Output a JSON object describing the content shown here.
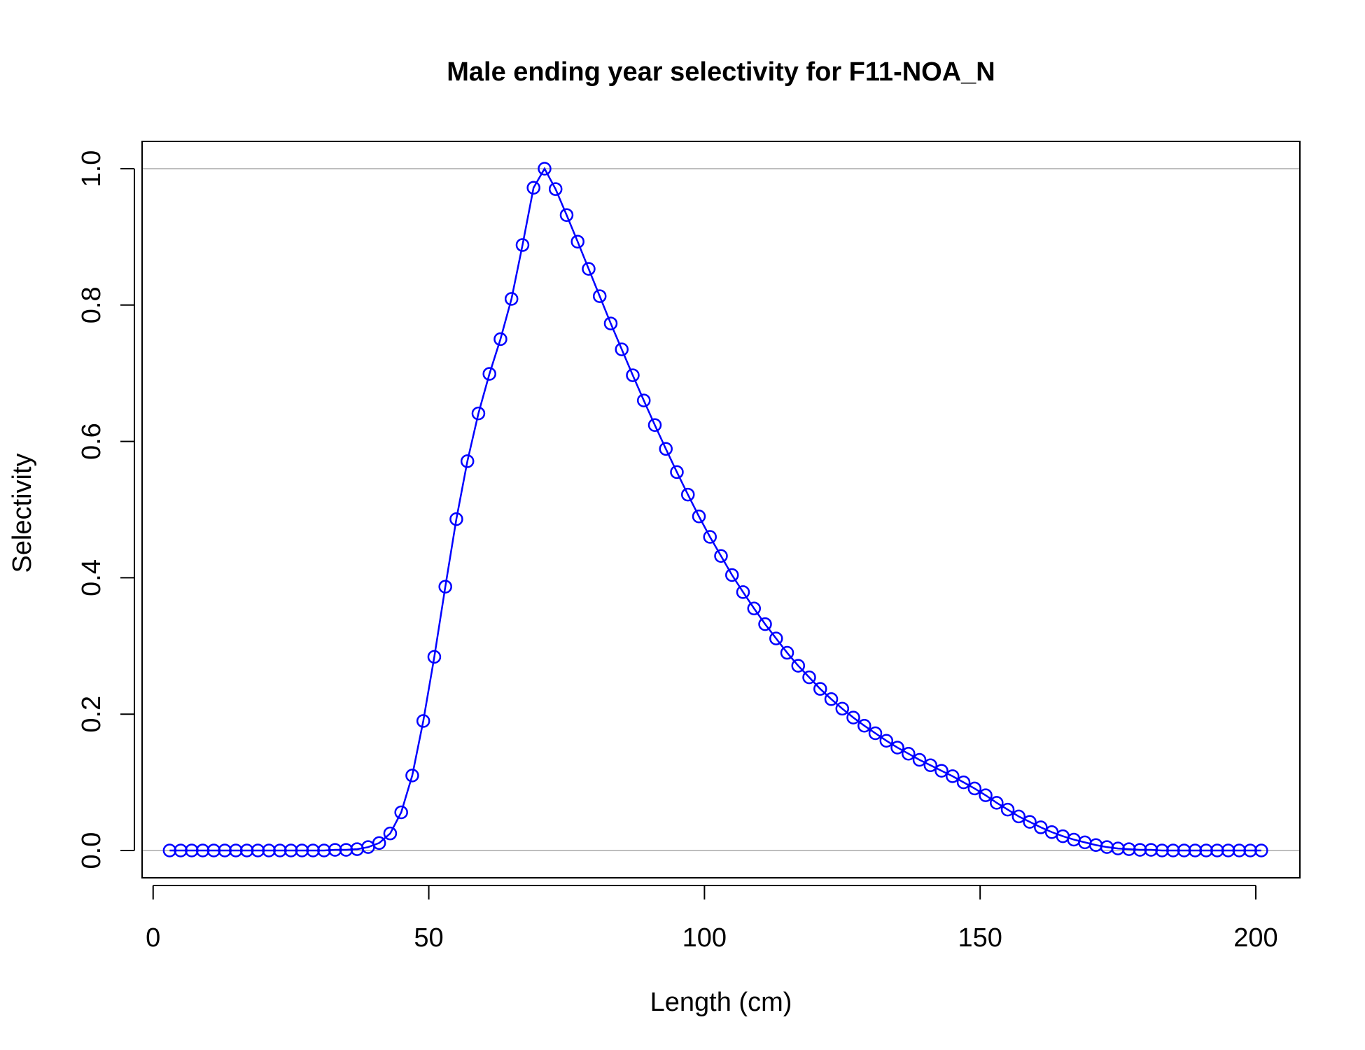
{
  "chart_data": {
    "type": "line",
    "title": "Male ending year selectivity for F11-NOA_N",
    "xlabel": "Length (cm)",
    "ylabel": "Selectivity",
    "xlim": [
      -2,
      208
    ],
    "ylim": [
      -0.04,
      1.04
    ],
    "xticks": [
      0,
      50,
      100,
      150,
      200
    ],
    "xtick_labels": [
      "0",
      "50",
      "100",
      "150",
      "200"
    ],
    "yticks": [
      0,
      0.2,
      0.4,
      0.6,
      0.8,
      1.0
    ],
    "ytick_labels": [
      "0.0",
      "0.2",
      "0.4",
      "0.6",
      "0.8",
      "1.0"
    ],
    "reference_lines": [
      0,
      1
    ],
    "grid": false,
    "legend": "none",
    "colors": {
      "series": "#0000ff",
      "reference": "#bebebe",
      "frame": "#000000"
    },
    "series": [
      {
        "marker": "open-circle",
        "x": [
          3,
          5,
          7,
          9,
          11,
          13,
          15,
          17,
          19,
          21,
          23,
          25,
          27,
          29,
          31,
          33,
          35,
          37,
          39,
          41,
          43,
          45,
          47,
          49,
          51,
          53,
          55,
          57,
          59,
          61,
          63,
          65,
          67,
          69,
          71,
          73,
          75,
          77,
          79,
          81,
          83,
          85,
          87,
          89,
          91,
          93,
          95,
          97,
          99,
          101,
          103,
          105,
          107,
          109,
          111,
          113,
          115,
          117,
          119,
          121,
          123,
          125,
          127,
          129,
          131,
          133,
          135,
          137,
          139,
          141,
          143,
          145,
          147,
          149,
          151,
          153,
          155,
          157,
          159,
          161,
          163,
          165,
          167,
          169,
          171,
          173,
          175,
          177,
          179,
          181,
          183,
          185,
          187,
          189,
          191,
          193,
          195,
          197,
          199,
          201
        ],
        "values": [
          0,
          0,
          0,
          0,
          0,
          0,
          0,
          0,
          0,
          0,
          0,
          0,
          0,
          0,
          0,
          0.001,
          0.001,
          0.002,
          0.005,
          0.011,
          0.025,
          0.056,
          0.11,
          0.19,
          0.284,
          0.387,
          0.486,
          0.571,
          0.641,
          0.699,
          0.75,
          0.809,
          0.888,
          0.972,
          1.0,
          0.97,
          0.932,
          0.893,
          0.853,
          0.813,
          0.773,
          0.735,
          0.697,
          0.66,
          0.624,
          0.589,
          0.555,
          0.522,
          0.49,
          0.46,
          0.432,
          0.404,
          0.379,
          0.355,
          0.332,
          0.311,
          0.29,
          0.271,
          0.254,
          0.237,
          0.222,
          0.208,
          0.195,
          0.183,
          0.172,
          0.161,
          0.151,
          0.142,
          0.133,
          0.125,
          0.117,
          0.109,
          0.1,
          0.091,
          0.081,
          0.07,
          0.06,
          0.05,
          0.042,
          0.034,
          0.027,
          0.021,
          0.016,
          0.012,
          0.008,
          0.005,
          0.003,
          0.002,
          0.001,
          0.001,
          0,
          0,
          0,
          0,
          0,
          0,
          0,
          0,
          0,
          0
        ]
      }
    ]
  }
}
